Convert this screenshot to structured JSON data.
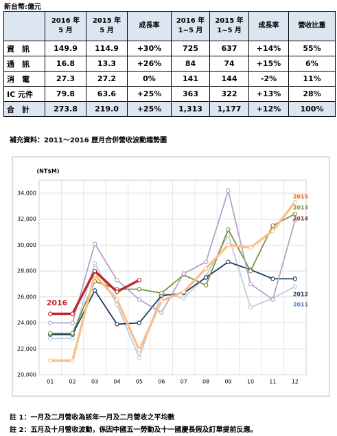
{
  "unit_note": "新台幣:億元",
  "table": {
    "header": [
      [
        "2016 年",
        "5 月"
      ],
      [
        "2015 年",
        "5 月"
      ],
      [
        "成長率"
      ],
      [
        "2016 年",
        "1~5 月"
      ],
      [
        "2015 年",
        "1~5 月"
      ],
      [
        "成長率"
      ],
      [
        "營收比重"
      ]
    ],
    "rows": [
      [
        "資　訊",
        "149.9",
        "114.9",
        "+30%",
        "725",
        "637",
        "+14%",
        "55%"
      ],
      [
        "通　訊",
        "16.8",
        "13.3",
        "+26%",
        "84",
        "74",
        "+15%",
        "6%"
      ],
      [
        "消　電",
        "27.3",
        "27.2",
        "0%",
        "141",
        "144",
        "-2%",
        "11%"
      ],
      [
        "IC 元件",
        "79.8",
        "63.6",
        "+25%",
        "363",
        "322",
        "+13%",
        "28%"
      ],
      [
        "合　計",
        "273.8",
        "219.0",
        "+25%",
        "1,313",
        "1,177",
        "+12%",
        "100%"
      ]
    ]
  },
  "chart_caption": "補充資料：2011～2016 歷月合併營收波動趨勢圖",
  "chart_data": {
    "type": "line",
    "y_label": "(NT$M)",
    "categories": [
      "01",
      "02",
      "03",
      "04",
      "05",
      "06",
      "07",
      "08",
      "09",
      "10",
      "11",
      "12"
    ],
    "ylim": [
      20000,
      35000
    ],
    "yticks": [
      {
        "value": 20000,
        "label": "20,000"
      },
      {
        "value": 22000,
        "label": "22,000"
      },
      {
        "value": 24000,
        "label": "24,000"
      },
      {
        "value": 26000,
        "label": "26,000"
      },
      {
        "value": 28000,
        "label": "28,000"
      },
      {
        "value": 30000,
        "label": "30,000"
      },
      {
        "value": 32000,
        "label": "32,000"
      },
      {
        "value": 34000,
        "label": "34,000"
      }
    ],
    "grid": true,
    "series": [
      {
        "name": "2011",
        "color": "#b7cde4",
        "label_color": "#4f81bd",
        "values": [
          22800,
          22800,
          28600,
          25400,
          21300,
          26300,
          25900,
          27600,
          30800,
          25200,
          25900,
          26800
        ]
      },
      {
        "name": "2012",
        "color": "#1f3a5f",
        "label_color": "#1f3a5f",
        "values": [
          23100,
          23100,
          26500,
          23900,
          24000,
          26100,
          26300,
          27500,
          28700,
          28100,
          27400,
          27400
        ]
      },
      {
        "name": "2013",
        "color": "#77933c",
        "label_color": "#77933c",
        "values": [
          23200,
          23200,
          27200,
          26600,
          26600,
          26300,
          27700,
          26900,
          31200,
          28000,
          31500,
          32400
        ]
      },
      {
        "name": "2014",
        "color": "#b3a2c7",
        "label_color": "#953735",
        "values": [
          24000,
          24000,
          30100,
          27300,
          25800,
          24800,
          27800,
          28700,
          34200,
          27000,
          25800,
          31900
        ]
      },
      {
        "name": "2015",
        "color": "#f9c08f",
        "label_color": "#e46c0a",
        "values": [
          21100,
          21100,
          27700,
          25800,
          21900,
          25700,
          26400,
          28200,
          30000,
          29800,
          31100,
          33300
        ]
      },
      {
        "name": "2016",
        "color": "#c0282d",
        "label_color": "#c0282d",
        "values": [
          24700,
          24700,
          28000,
          26400,
          27300,
          null,
          null,
          null,
          null,
          null,
          null,
          null
        ]
      }
    ]
  },
  "notes": [
    "註 1：一月及二月營收為該年一月及二月營收之平均數",
    "註 2：五月及十月營收波動，係因中國五一勞動及十一國慶長假及訂單提前反應。"
  ]
}
